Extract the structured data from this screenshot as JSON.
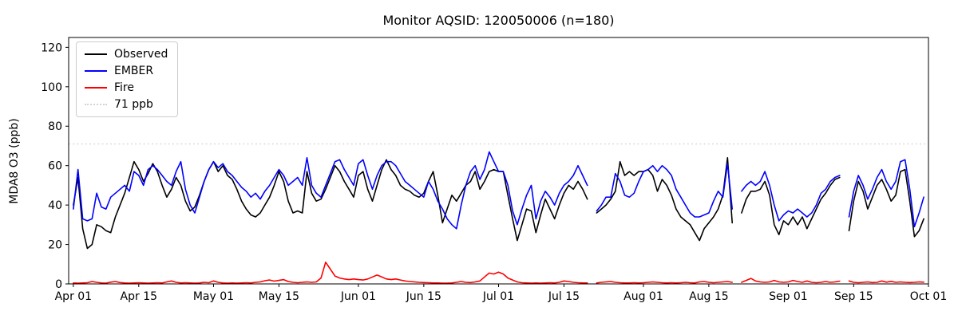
{
  "chart_data": {
    "type": "line",
    "title": "Monitor AQSID: 120050006 (n=180)",
    "xlabel": "",
    "ylabel": "MDA8 O3 (ppb)",
    "x_start_date": "Apr 01",
    "x_end_date": "Oct 01",
    "xlim_days": [
      -1,
      183
    ],
    "ylim": [
      0,
      125
    ],
    "y_ticks": [
      0,
      20,
      40,
      60,
      80,
      100,
      120
    ],
    "x_ticks": [
      {
        "day": 0,
        "label": "Apr 01"
      },
      {
        "day": 14,
        "label": "Apr 15"
      },
      {
        "day": 30,
        "label": "May 01"
      },
      {
        "day": 44,
        "label": "May 15"
      },
      {
        "day": 61,
        "label": "Jun 01"
      },
      {
        "day": 75,
        "label": "Jun 15"
      },
      {
        "day": 91,
        "label": "Jul 01"
      },
      {
        "day": 105,
        "label": "Jul 15"
      },
      {
        "day": 122,
        "label": "Aug 01"
      },
      {
        "day": 136,
        "label": "Aug 15"
      },
      {
        "day": 153,
        "label": "Sep 01"
      },
      {
        "day": 167,
        "label": "Sep 15"
      },
      {
        "day": 183,
        "label": "Oct 01"
      }
    ],
    "threshold": {
      "value": 71,
      "label": "71 ppb",
      "color": "#d3d3d3",
      "style": "dotted"
    },
    "missing_days": [
      "Jul 21",
      "Aug 21",
      "Sep 13"
    ],
    "series": [
      {
        "name": "Observed",
        "color": "#000000",
        "style": "solid",
        "values": [
          40,
          54,
          28,
          18,
          20,
          30,
          29,
          27,
          26,
          34,
          40,
          46,
          54,
          62,
          58,
          52,
          56,
          61,
          57,
          50,
          44,
          48,
          54,
          50,
          42,
          37,
          39,
          45,
          52,
          58,
          62,
          57,
          60,
          55,
          53,
          48,
          42,
          38,
          35,
          34,
          36,
          40,
          44,
          50,
          57,
          52,
          42,
          36,
          37,
          36,
          57,
          46,
          42,
          43,
          48,
          54,
          60,
          57,
          52,
          48,
          44,
          55,
          57,
          48,
          42,
          50,
          58,
          63,
          58,
          55,
          50,
          48,
          47,
          45,
          44,
          46,
          52,
          57,
          45,
          31,
          38,
          45,
          42,
          46,
          50,
          52,
          57,
          48,
          52,
          57,
          58,
          57,
          57,
          45,
          33,
          22,
          30,
          38,
          37,
          26,
          35,
          43,
          38,
          33,
          40,
          46,
          50,
          48,
          52,
          48,
          43,
          null,
          36,
          38,
          40,
          43,
          47,
          62,
          55,
          57,
          55,
          57,
          57,
          58,
          55,
          47,
          53,
          50,
          45,
          38,
          34,
          32,
          30,
          26,
          22,
          28,
          31,
          34,
          38,
          45,
          64,
          31,
          null,
          36,
          43,
          47,
          47,
          48,
          52,
          45,
          30,
          25,
          32,
          30,
          34,
          30,
          34,
          28,
          33,
          38,
          43,
          46,
          50,
          53,
          54,
          null,
          27,
          42,
          52,
          47,
          38,
          44,
          50,
          53,
          48,
          42,
          45,
          57,
          58,
          42,
          24,
          27,
          33
        ]
      },
      {
        "name": "EMBER",
        "color": "#0000ff",
        "style": "solid",
        "values": [
          38,
          58,
          33,
          32,
          33,
          46,
          39,
          38,
          44,
          46,
          48,
          50,
          47,
          57,
          55,
          50,
          58,
          60,
          58,
          55,
          52,
          50,
          57,
          62,
          48,
          40,
          36,
          44,
          52,
          58,
          62,
          59,
          61,
          57,
          55,
          52,
          49,
          47,
          44,
          46,
          43,
          47,
          50,
          54,
          58,
          55,
          50,
          52,
          54,
          50,
          64,
          50,
          46,
          44,
          50,
          56,
          62,
          63,
          58,
          54,
          50,
          61,
          63,
          55,
          48,
          55,
          60,
          62,
          62,
          60,
          56,
          52,
          50,
          48,
          46,
          44,
          52,
          48,
          42,
          38,
          33,
          30,
          28,
          40,
          50,
          57,
          60,
          53,
          58,
          67,
          62,
          57,
          57,
          50,
          37,
          30,
          38,
          45,
          50,
          33,
          42,
          47,
          44,
          40,
          46,
          50,
          52,
          55,
          60,
          55,
          50,
          null,
          37,
          40,
          44,
          44,
          56,
          52,
          45,
          44,
          46,
          52,
          57,
          58,
          60,
          57,
          60,
          58,
          55,
          48,
          44,
          40,
          36,
          34,
          34,
          35,
          36,
          42,
          47,
          44,
          61,
          38,
          null,
          47,
          50,
          52,
          50,
          52,
          57,
          50,
          40,
          32,
          35,
          37,
          36,
          38,
          36,
          34,
          36,
          40,
          46,
          48,
          52,
          54,
          55,
          null,
          34,
          47,
          55,
          50,
          43,
          48,
          54,
          58,
          52,
          48,
          52,
          62,
          63,
          48,
          29,
          36,
          44
        ]
      },
      {
        "name": "Fire",
        "color": "#ff0000",
        "style": "solid",
        "values": [
          0.5,
          0.4,
          0.5,
          0.6,
          1.2,
          0.8,
          0.5,
          0.4,
          0.9,
          1.2,
          0.7,
          0.5,
          0.4,
          0.5,
          0.6,
          0.5,
          0.4,
          0.5,
          0.6,
          0.5,
          1.0,
          1.5,
          0.8,
          0.5,
          0.6,
          0.5,
          0.4,
          0.5,
          0.8,
          0.6,
          1.5,
          0.8,
          0.5,
          0.4,
          0.5,
          0.4,
          0.5,
          0.6,
          0.5,
          0.8,
          1.0,
          1.6,
          2.0,
          1.4,
          1.8,
          2.2,
          1.2,
          0.8,
          0.6,
          0.8,
          1.0,
          0.8,
          1.0,
          3.0,
          11.0,
          7.5,
          4.0,
          3.0,
          2.5,
          2.2,
          2.5,
          2.2,
          2.0,
          2.5,
          3.5,
          4.5,
          3.5,
          2.5,
          2.2,
          2.5,
          2.0,
          1.5,
          1.2,
          1.0,
          0.8,
          0.7,
          0.6,
          0.5,
          0.5,
          0.4,
          0.4,
          0.5,
          0.8,
          1.2,
          0.8,
          0.7,
          1.0,
          1.5,
          3.5,
          5.5,
          5.0,
          6.0,
          5.0,
          3.0,
          2.0,
          1.0,
          0.6,
          0.5,
          0.4,
          0.5,
          0.4,
          0.5,
          0.6,
          0.5,
          0.8,
          1.5,
          1.2,
          0.8,
          0.6,
          0.5,
          0.5,
          null,
          0.5,
          0.8,
          1.0,
          1.2,
          0.8,
          0.6,
          0.5,
          0.5,
          0.6,
          0.5,
          0.6,
          0.8,
          1.0,
          0.8,
          0.6,
          0.5,
          0.6,
          0.5,
          0.6,
          0.8,
          0.6,
          0.5,
          1.0,
          1.2,
          0.8,
          0.6,
          0.8,
          1.0,
          1.2,
          0.8,
          null,
          0.8,
          1.8,
          2.8,
          1.5,
          1.0,
          0.8,
          1.0,
          1.8,
          1.0,
          0.8,
          1.0,
          1.8,
          1.2,
          0.8,
          1.5,
          0.8,
          0.6,
          0.8,
          1.2,
          0.8,
          1.0,
          1.4,
          null,
          1.5,
          0.8,
          0.6,
          0.8,
          1.0,
          0.7,
          0.8,
          1.5,
          0.9,
          1.3,
          0.8,
          1.0,
          0.8,
          0.7,
          0.8,
          1.0,
          0.9
        ]
      }
    ],
    "legend": {
      "position": "upper-left",
      "entries": [
        {
          "label": "Observed",
          "color": "#000000",
          "style": "solid"
        },
        {
          "label": "EMBER",
          "color": "#0000ff",
          "style": "solid"
        },
        {
          "label": "Fire",
          "color": "#ff0000",
          "style": "solid"
        },
        {
          "label": "71 ppb",
          "color": "#d3d3d3",
          "style": "dotted"
        }
      ]
    }
  }
}
